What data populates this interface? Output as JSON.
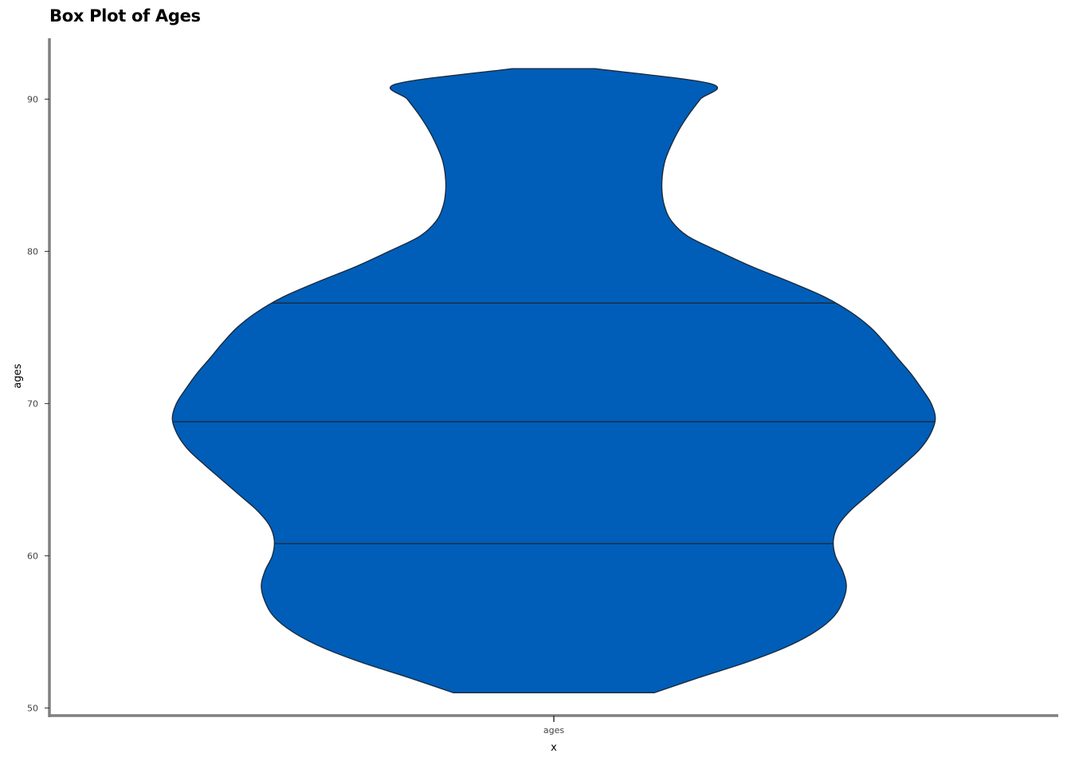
{
  "chart_data": {
    "type": "violin",
    "title": "Box Plot of Ages",
    "xlabel": "x",
    "ylabel": "ages",
    "categories": [
      "ages"
    ],
    "yticks": [
      50,
      60,
      70,
      80,
      90
    ],
    "ylim": [
      49.5,
      94
    ],
    "grid": false,
    "fill_color": "#005eb8",
    "outline_color": "#1a2b40",
    "axis_color": "#808080",
    "violin": {
      "min": 51,
      "max": 92,
      "quartiles": [
        60.8,
        68.8,
        76.6
      ],
      "half_width_profile": [
        [
          51.0,
          0.246
        ],
        [
          52.0,
          0.356
        ],
        [
          53.0,
          0.472
        ],
        [
          54.0,
          0.569
        ],
        [
          55.0,
          0.64
        ],
        [
          56.0,
          0.686
        ],
        [
          57.0,
          0.708
        ],
        [
          58.0,
          0.717
        ],
        [
          59.0,
          0.708
        ],
        [
          60.0,
          0.69
        ],
        [
          61.0,
          0.685
        ],
        [
          62.0,
          0.697
        ],
        [
          63.0,
          0.728
        ],
        [
          64.0,
          0.771
        ],
        [
          65.0,
          0.814
        ],
        [
          66.0,
          0.857
        ],
        [
          67.0,
          0.897
        ],
        [
          68.0,
          0.923
        ],
        [
          69.0,
          0.935
        ],
        [
          70.0,
          0.925
        ],
        [
          71.0,
          0.901
        ],
        [
          72.0,
          0.874
        ],
        [
          73.0,
          0.842
        ],
        [
          74.0,
          0.811
        ],
        [
          75.0,
          0.776
        ],
        [
          76.0,
          0.728
        ],
        [
          77.0,
          0.664
        ],
        [
          78.0,
          0.578
        ],
        [
          79.0,
          0.485
        ],
        [
          80.0,
          0.404
        ],
        [
          81.0,
          0.328
        ],
        [
          82.0,
          0.288
        ],
        [
          83.0,
          0.271
        ],
        [
          84.0,
          0.265
        ],
        [
          85.0,
          0.266
        ],
        [
          86.0,
          0.273
        ],
        [
          87.0,
          0.288
        ],
        [
          88.0,
          0.307
        ],
        [
          89.0,
          0.331
        ],
        [
          90.0,
          0.359
        ],
        [
          91.0,
          0.386
        ],
        [
          92.0,
          0.102
        ]
      ]
    }
  }
}
